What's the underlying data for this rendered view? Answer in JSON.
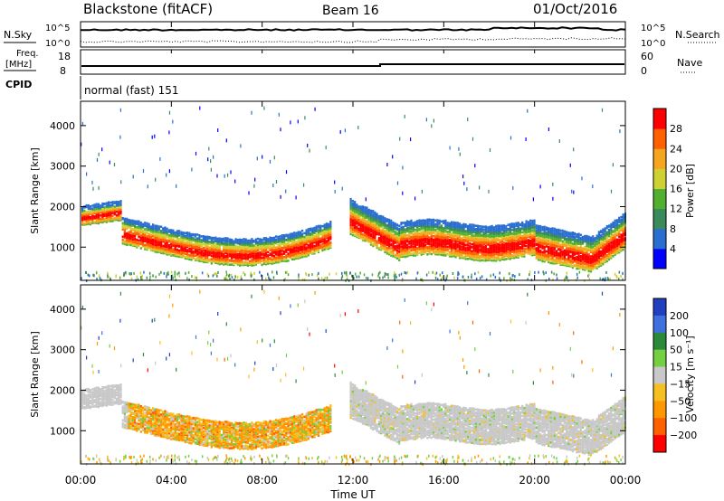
{
  "header": {
    "station": "Blackstone (fitACF)",
    "beam": "Beam 16",
    "date": "01/Oct/2016"
  },
  "meta_panel": {
    "nsky_label": "N.Sky",
    "nsearch_label": "N.Search",
    "noise_tick_top": "10^5",
    "noise_tick_bottom": "10^0",
    "freq_label": "Freq.",
    "freq_unit": "[MHz]",
    "freq_ticks": [
      "18",
      "8"
    ],
    "nave_label": "Nave",
    "nave_ticks": [
      "60",
      "0"
    ],
    "cpid_label": "CPID",
    "cpid_value": "normal (fast) 151"
  },
  "x_axis": {
    "label": "Time UT",
    "ticks": [
      "00:00",
      "04:00",
      "08:00",
      "12:00",
      "16:00",
      "20:00",
      "00:00"
    ]
  },
  "chart_data": [
    {
      "type": "heatmap",
      "parameter": "power",
      "ylabel": "Slant Range [km]",
      "yticks": [
        "1000",
        "2000",
        "3000",
        "4000"
      ],
      "ylim": [
        180,
        4600
      ],
      "xlim_hours": [
        0,
        24
      ],
      "colorbar": {
        "label": "Power [dB]",
        "ticks": [
          "4",
          "8",
          "12",
          "16",
          "20",
          "24",
          "28"
        ],
        "range": [
          0,
          32
        ],
        "colors": [
          "#0000ff",
          "#2a6fd0",
          "#3a8a5c",
          "#52b030",
          "#cfd032",
          "#f5a51e",
          "#ff6000",
          "#ff0000"
        ]
      },
      "bands": [
        {
          "t_start": 0.0,
          "t_end": 1.8,
          "range_km": [
            1600,
            2150
          ],
          "peak_db": 24
        },
        {
          "t_start": 1.8,
          "t_end": 11.0,
          "range_km": [
            700,
            1600
          ],
          "peak_db": 28
        },
        {
          "t_start": 11.8,
          "t_end": 24.0,
          "range_km": [
            750,
            2100
          ],
          "peak_db": 28
        }
      ]
    },
    {
      "type": "heatmap",
      "parameter": "velocity",
      "ylabel": "Slant Range [km]",
      "yticks": [
        "1000",
        "2000",
        "3000",
        "4000"
      ],
      "ylim": [
        180,
        4600
      ],
      "xlim_hours": [
        0,
        24
      ],
      "colorbar": {
        "label": "Velocity [m s⁻¹]",
        "ticks": [
          "200",
          "100",
          "50",
          "15",
          "−15",
          "−50",
          "−100",
          "−200"
        ],
        "colors": [
          "#2040c0",
          "#4070e0",
          "#2a8a3a",
          "#74d040",
          "#c8c8c8",
          "#f5c020",
          "#ff9800",
          "#ff6000",
          "#ff0000"
        ]
      },
      "bands": [
        {
          "t_start": 0.0,
          "t_end": 1.8,
          "range_km": [
            1600,
            2150
          ],
          "dominant": "ground scatter (grey)"
        },
        {
          "t_start": 1.8,
          "t_end": 11.0,
          "range_km": [
            700,
            1600
          ],
          "dominant": "-50 to -100 (orange)"
        },
        {
          "t_start": 11.8,
          "t_end": 24.0,
          "range_km": [
            750,
            2100
          ],
          "dominant": "ground scatter (grey)"
        }
      ]
    }
  ]
}
